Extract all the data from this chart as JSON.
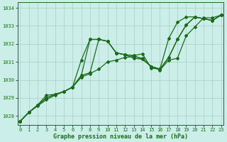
{
  "xlabel": "Graphe pression niveau de la mer (hPa)",
  "background_color": "#cceee8",
  "grid_color": "#aaccc8",
  "line_color": "#1a6b1a",
  "ylim": [
    1027.5,
    1034.3
  ],
  "xlim": [
    -0.3,
    23.3
  ],
  "yticks": [
    1028,
    1029,
    1030,
    1031,
    1032,
    1033,
    1034
  ],
  "xticks": [
    0,
    1,
    2,
    3,
    4,
    5,
    6,
    7,
    8,
    9,
    10,
    11,
    12,
    13,
    14,
    15,
    16,
    17,
    18,
    19,
    20,
    21,
    22,
    23
  ],
  "series": [
    [
      1027.7,
      1028.2,
      1028.55,
      1028.9,
      1029.15,
      1029.35,
      1029.6,
      1030.15,
      1030.35,
      1030.6,
      1031.0,
      1031.1,
      1031.25,
      1031.3,
      1031.2,
      1030.75,
      1030.55,
      1031.1,
      1031.2,
      1032.45,
      1032.95,
      1033.45,
      1033.45,
      1033.6
    ],
    [
      1027.7,
      1028.2,
      1028.6,
      1029.15,
      1029.2,
      1029.35,
      1029.6,
      1030.25,
      1032.25,
      1032.25,
      1032.15,
      1031.5,
      1031.4,
      1031.35,
      1031.45,
      1030.65,
      1030.6,
      1032.3,
      1033.2,
      1033.5,
      1033.5,
      1033.4,
      1033.3,
      1033.6
    ],
    [
      1027.7,
      1028.2,
      1028.6,
      1029.0,
      1029.2,
      1029.35,
      1029.6,
      1031.1,
      1032.25,
      1032.25,
      1032.15,
      1031.5,
      1031.4,
      1031.35,
      1031.15,
      1030.75,
      1030.6,
      1031.25,
      1032.25,
      1033.05,
      1033.5,
      1033.4,
      1033.3,
      1033.6
    ],
    [
      1027.7,
      1028.2,
      1028.6,
      1029.0,
      1029.2,
      1029.35,
      1029.6,
      1030.25,
      1030.4,
      1032.25,
      1032.15,
      1031.5,
      1031.4,
      1031.2,
      1031.15,
      1030.75,
      1030.6,
      1031.25,
      1032.25,
      1033.05,
      1033.5,
      1033.4,
      1033.3,
      1033.6
    ]
  ],
  "marker_style": "D",
  "marker_size": 2.0,
  "line_width": 0.9,
  "tick_fontsize": 5.0,
  "label_fontsize": 6.0,
  "label_fontweight": "bold"
}
